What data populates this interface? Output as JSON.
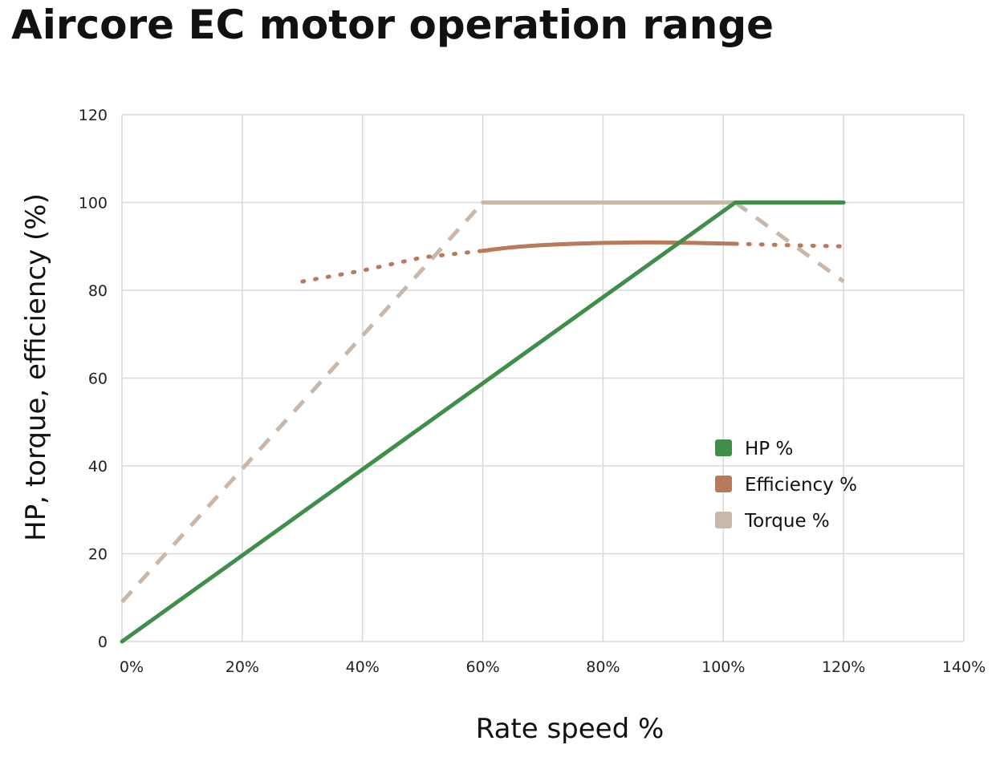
{
  "chart_data": {
    "type": "line",
    "title": "Aircore EC motor operation range",
    "xlabel": "Rate speed %",
    "ylabel": "HP, torque, efficiency (%)",
    "xlim": [
      0,
      140
    ],
    "ylim": [
      0,
      120
    ],
    "x_ticks": [
      "0%",
      "20%",
      "40%",
      "60%",
      "80%",
      "100%",
      "120%",
      "140%"
    ],
    "y_ticks": [
      "0",
      "20",
      "40",
      "60",
      "80",
      "100",
      "120"
    ],
    "grid": true,
    "legend_position": "right-center",
    "series": [
      {
        "name": "HP %",
        "color": "#3f8f4b",
        "style": "solid",
        "x": [
          0,
          102,
          120
        ],
        "y": [
          0,
          100,
          100
        ]
      },
      {
        "name": "Efficiency %",
        "color": "#b87a5a",
        "style": "dotted",
        "x": [
          30,
          40,
          50,
          60
        ],
        "y": [
          82,
          84.5,
          87.5,
          89
        ]
      },
      {
        "name": "Efficiency %",
        "color": "#b87a5a",
        "style": "solid",
        "x": [
          60,
          65,
          70,
          75,
          80,
          85,
          90,
          95,
          102
        ],
        "y": [
          89,
          89.8,
          90.3,
          90.6,
          90.8,
          90.9,
          90.9,
          90.8,
          90.6
        ]
      },
      {
        "name": "Efficiency %",
        "color": "#b87a5a",
        "style": "dotted",
        "x": [
          102,
          110,
          120
        ],
        "y": [
          90.6,
          90.3,
          90
        ]
      },
      {
        "name": "Torque %",
        "color": "#c9b8aa",
        "style": "dashed",
        "x": [
          0,
          60
        ],
        "y": [
          9,
          100
        ]
      },
      {
        "name": "Torque %",
        "color": "#c9b8aa",
        "style": "solid",
        "x": [
          60,
          102
        ],
        "y": [
          100,
          100
        ]
      },
      {
        "name": "Torque %",
        "color": "#c9b8aa",
        "style": "dashed",
        "x": [
          102,
          120
        ],
        "y": [
          100,
          82
        ]
      }
    ],
    "legend": [
      {
        "label": "HP %",
        "color": "#3f8f4b"
      },
      {
        "label": "Efficiency %",
        "color": "#b87a5a"
      },
      {
        "label": "Torque %",
        "color": "#c9b8aa"
      }
    ]
  }
}
